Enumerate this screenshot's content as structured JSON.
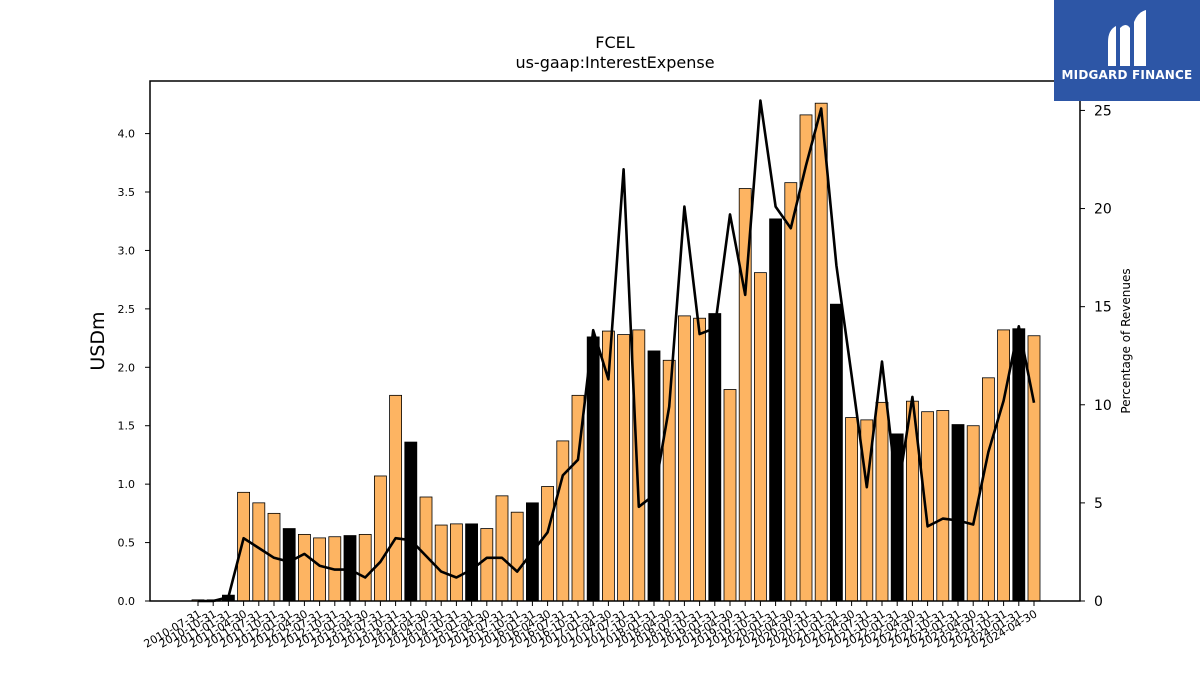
{
  "brand": {
    "name": "MIDGARD FINANCE",
    "bg_color": "#2d56a6",
    "icon": "midgard-logo-icon"
  },
  "chart_data": {
    "type": "bar",
    "title": "FCEL",
    "subtitle": "us-gaap:InterestExpense",
    "ylabel": "USDm",
    "y2label": "Percentage of Revenues",
    "ylim": [
      0,
      4.45
    ],
    "y2lim": [
      0,
      26.5
    ],
    "yticks": [
      "0.0",
      "0.5",
      "1.0",
      "1.5",
      "2.0",
      "2.5",
      "3.0",
      "3.5",
      "4.0"
    ],
    "y2ticks": [
      "0",
      "5",
      "10",
      "15",
      "20",
      "25"
    ],
    "bar_color_quarter": "#fdb462",
    "bar_color_annual": "#000000",
    "line_color": "#000000",
    "grid": false,
    "categories": [
      "2010-07-31",
      "2010-10-31",
      "2011-01-31",
      "2011-04-30",
      "2011-07-31",
      "2011-10-31",
      "2012-01-31",
      "2012-04-30",
      "2012-07-31",
      "2012-10-31",
      "2013-01-31",
      "2013-04-30",
      "2013-07-31",
      "2013-10-31",
      "2014-01-31",
      "2014-04-30",
      "2014-07-31",
      "2014-10-31",
      "2015-01-31",
      "2015-04-30",
      "2015-07-31",
      "2015-10-31",
      "2016-01-31",
      "2016-04-30",
      "2016-07-31",
      "2016-10-31",
      "2017-01-31",
      "2017-04-30",
      "2017-07-31",
      "2017-10-31",
      "2018-01-31",
      "2018-04-30",
      "2018-07-31",
      "2018-10-31",
      "2019-01-31",
      "2019-04-30",
      "2019-07-31",
      "2019-10-31",
      "2020-01-31",
      "2020-04-30",
      "2020-07-31",
      "2020-10-31",
      "2021-01-31",
      "2021-04-30",
      "2021-07-31",
      "2021-10-31",
      "2022-01-31",
      "2022-04-30",
      "2022-07-31",
      "2022-10-31",
      "2023-01-31",
      "2023-04-30",
      "2023-07-31",
      "2023-10-31",
      "2024-01-31",
      "2024-04-30"
    ],
    "series": [
      {
        "values": [
          0.01,
          0.01,
          0.05,
          0.93,
          0.84,
          0.75,
          0.62,
          0.57,
          0.54,
          0.55,
          0.56,
          0.57,
          1.07,
          1.76,
          1.36,
          0.89,
          0.65,
          0.66,
          0.66,
          0.62,
          0.9,
          0.76,
          0.84,
          0.98,
          1.37,
          1.76,
          2.26,
          2.31,
          2.28,
          2.32,
          2.14,
          2.06,
          2.44,
          2.42,
          2.46,
          1.81,
          3.53,
          2.81,
          3.27,
          3.58,
          4.16,
          4.26,
          2.54,
          1.57,
          1.55,
          1.7,
          1.43,
          1.71,
          1.62,
          1.63,
          1.51,
          1.5,
          1.91,
          2.32,
          2.33,
          2.27
        ],
        "annual": [
          false,
          false,
          true,
          false,
          false,
          false,
          true,
          false,
          false,
          false,
          true,
          false,
          false,
          false,
          true,
          false,
          false,
          false,
          true,
          false,
          false,
          false,
          true,
          false,
          false,
          false,
          true,
          false,
          false,
          false,
          true,
          false,
          false,
          false,
          true,
          false,
          false,
          false,
          true,
          false,
          false,
          false,
          true,
          false,
          false,
          false,
          true,
          false,
          false,
          false,
          true,
          false,
          false,
          false,
          true,
          false
        ]
      },
      {
        "values": [
          0.0,
          0.0,
          0.2,
          3.2,
          2.7,
          2.2,
          2.0,
          2.4,
          1.8,
          1.6,
          1.6,
          1.2,
          2.0,
          3.2,
          3.1,
          2.3,
          1.5,
          1.2,
          1.6,
          2.2,
          2.2,
          1.5,
          2.5,
          3.5,
          6.4,
          7.2,
          13.8,
          11.3,
          22.0,
          4.8,
          5.4,
          9.9,
          20.1,
          13.6,
          13.9,
          19.7,
          15.6,
          25.5,
          20.1,
          19.0,
          22.2,
          25.1,
          17.1,
          11.5,
          5.8,
          12.2,
          5.4,
          10.4,
          3.8,
          4.2,
          4.1,
          3.9,
          7.6,
          10.2,
          14.0,
          10.1
        ]
      }
    ]
  }
}
